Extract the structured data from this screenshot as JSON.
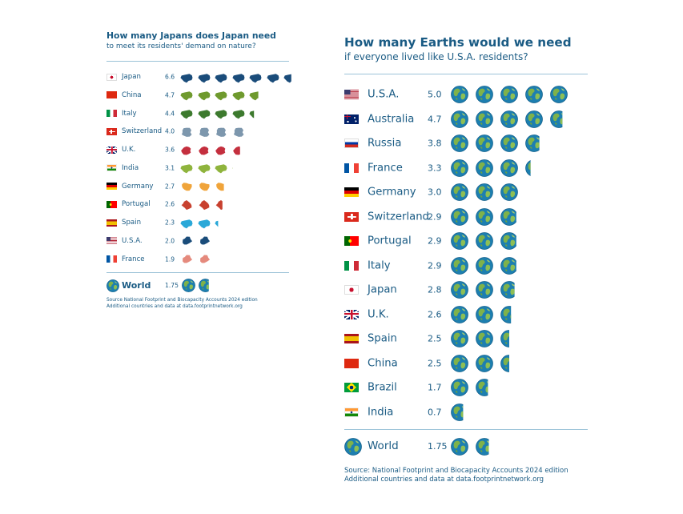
{
  "chart_data": [
    {
      "type": "pictograph",
      "title": "How many Japans does Japan need",
      "subtitle": "to meet its residents' demand on nature?",
      "unit_icon": "country-shape-icon",
      "categories": [
        "Japan",
        "China",
        "Italy",
        "Switzerland",
        "U.K.",
        "India",
        "Germany",
        "Portugal",
        "Spain",
        "U.S.A.",
        "France"
      ],
      "values": [
        6.6,
        4.7,
        4.4,
        4.0,
        3.6,
        3.1,
        2.7,
        2.6,
        2.3,
        2.0,
        1.9
      ],
      "value_labels": [
        "6.6",
        "4.7",
        "4.4",
        "4.0",
        "3.6",
        "3.1",
        "2.7",
        "2.6",
        "2.3",
        "2.0",
        "1.9"
      ],
      "icon_colors": [
        "#1a4c7a",
        "#6f9a2e",
        "#3d7a2e",
        "#7d97ad",
        "#c42f3e",
        "#8fb43d",
        "#f0a43a",
        "#c8412f",
        "#2aa8d8",
        "#1a4c7a",
        "#e58a7d"
      ],
      "world": {
        "label": "World",
        "value": 1.75,
        "value_label": "1.75"
      },
      "source_lines": [
        "Source National Footprint and Biocapacity Accounts 2024 edition",
        "Additional countries and data at data.footprintnetwork.org"
      ]
    },
    {
      "type": "pictograph",
      "title": "How many Earths would we need",
      "subtitle": "if everyone lived like U.S.A. residents?",
      "unit_icon": "earth-globe-icon",
      "categories": [
        "U.S.A.",
        "Australia",
        "Russia",
        "France",
        "Germany",
        "Switzerland",
        "Portugal",
        "Italy",
        "Japan",
        "U.K.",
        "Spain",
        "China",
        "Brazil",
        "India"
      ],
      "values": [
        5.0,
        4.7,
        3.8,
        3.3,
        3.0,
        2.9,
        2.9,
        2.9,
        2.8,
        2.6,
        2.5,
        2.5,
        1.7,
        0.7
      ],
      "value_labels": [
        "5.0",
        "4.7",
        "3.8",
        "3.3",
        "3.0",
        "2.9",
        "2.9",
        "2.9",
        "2.8",
        "2.6",
        "2.5",
        "2.5",
        "1.7",
        "0.7"
      ],
      "world": {
        "label": "World",
        "value": 1.75,
        "value_label": "1.75"
      },
      "source_lines": [
        "Source: National Footprint and Biocapacity Accounts 2024 edition",
        "Additional countries and data at data.footprintnetwork.org"
      ]
    }
  ]
}
